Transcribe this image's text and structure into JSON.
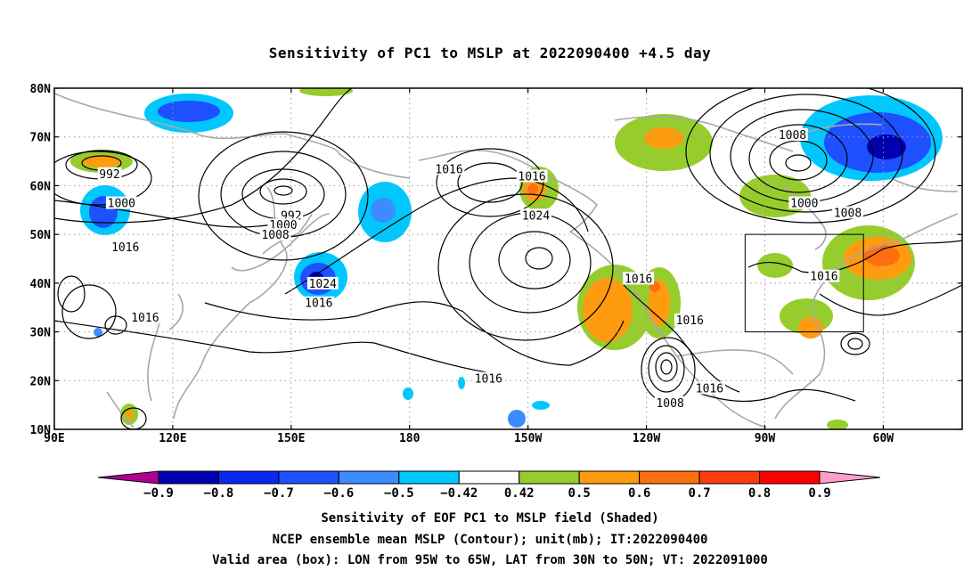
{
  "title": "Sensitivity of PC1 to MSLP at 2022090400 +4.5 day",
  "map": {
    "lat_ticks": [
      "80N",
      "70N",
      "60N",
      "50N",
      "40N",
      "30N",
      "20N",
      "10N"
    ],
    "lon_ticks": [
      "90E",
      "120E",
      "150E",
      "180",
      "150W",
      "120W",
      "90W",
      "60W"
    ],
    "contour_labels": [
      {
        "text": "992",
        "lon": 104,
        "lat": 62.5
      },
      {
        "text": "1000",
        "lon": 107,
        "lat": 56.5
      },
      {
        "text": "1016",
        "lon": 108,
        "lat": 47.5
      },
      {
        "text": "992",
        "lon": 150,
        "lat": 54
      },
      {
        "text": "1000",
        "lon": 148,
        "lat": 52
      },
      {
        "text": "1008",
        "lon": 146,
        "lat": 50
      },
      {
        "text": "1016",
        "lon": 190,
        "lat": 63.5
      },
      {
        "text": "1016",
        "lon": 211,
        "lat": 62
      },
      {
        "text": "1024",
        "lon": 212,
        "lat": 54
      },
      {
        "text": "1024",
        "lon": 158,
        "lat": 40
      },
      {
        "text": "1016",
        "lon": 157,
        "lat": 36
      },
      {
        "text": "1016",
        "lon": 113,
        "lat": 33
      },
      {
        "text": "1016",
        "lon": 200,
        "lat": 20.5
      },
      {
        "text": "1016",
        "lon": 238,
        "lat": 41
      },
      {
        "text": "1016",
        "lon": 251,
        "lat": 32.5
      },
      {
        "text": "1008",
        "lon": 246,
        "lat": 15.5
      },
      {
        "text": "1016",
        "lon": 256,
        "lat": 18.5
      },
      {
        "text": "1008",
        "lon": 277,
        "lat": 70.5
      },
      {
        "text": "1000",
        "lon": 280,
        "lat": 56.5
      },
      {
        "text": "1008",
        "lon": 291,
        "lat": 54.5
      },
      {
        "text": "1016",
        "lon": 285,
        "lat": 41.5
      }
    ],
    "valid_box": {
      "lon_min": 265,
      "lon_max": 295,
      "lat_min": 30,
      "lat_max": 50
    }
  },
  "colorbar": {
    "levels": [
      "−0.9",
      "−0.8",
      "−0.7",
      "−0.6",
      "−0.5",
      "−0.42",
      "0.42",
      "0.5",
      "0.6",
      "0.7",
      "0.8",
      "0.9"
    ],
    "colors": [
      "#b00090",
      "#0000b0",
      "#0a28f0",
      "#1e50ff",
      "#3c8cff",
      "#00c8ff",
      "#ffffff",
      "#96cd2d",
      "#ff9b0f",
      "#ff6e0f",
      "#ff3c0f",
      "#ff0000",
      "#ff9ec8"
    ]
  },
  "captions": [
    "Sensitivity of EOF PC1 to MSLP field (Shaded)",
    "NCEP ensemble mean MSLP (Contour); unit(mb); IT:2022090400",
    "Valid area (box): LON from 95W to 65W, LAT from 30N to 50N; VT: 2022091000"
  ]
}
